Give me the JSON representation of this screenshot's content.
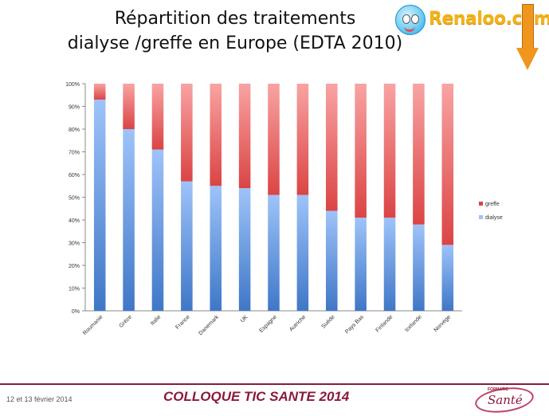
{
  "slide": {
    "title_line1": "Répartition  des traitements",
    "title_line2": "dialyse /greffe en Europe (EDTA 2010)"
  },
  "logo": {
    "text": "Renaloo.com"
  },
  "footer": {
    "date": "12 et 13 février 2014",
    "event": "COLLOQUE TIC SANTE 2014",
    "logo_small": "FORMATIC",
    "logo_main": "Santé"
  },
  "colors": {
    "dialyse_top": "#9ec3f9",
    "dialyse_bottom": "#3f77c7",
    "greffe_top": "#f9a3a3",
    "greffe_bottom": "#db4444",
    "footer_accent": "#8a1a3a",
    "arrow": "#f0961e"
  },
  "chart_data": {
    "type": "bar",
    "stacked": true,
    "percent": true,
    "categories": [
      "Roumanie",
      "Grèce",
      "Italie",
      "France",
      "Danemark",
      "UK",
      "Espagne",
      "Autriche",
      "Suède",
      "Pays Bas",
      "Finlande",
      "Icelande",
      "Norvège"
    ],
    "series": [
      {
        "name": "dialyse",
        "values": [
          93,
          80,
          71,
          57,
          55,
          54,
          51,
          51,
          44,
          41,
          41,
          38,
          29
        ]
      },
      {
        "name": "greffe",
        "values": [
          7,
          20,
          29,
          43,
          45,
          46,
          49,
          49,
          56,
          59,
          59,
          62,
          71
        ]
      }
    ],
    "ylim": [
      0,
      100
    ],
    "yticks": [
      "0%",
      "10%",
      "20%",
      "30%",
      "40%",
      "50%",
      "60%",
      "70%",
      "80%",
      "90%",
      "100%"
    ],
    "legend": [
      "greffe",
      "dialyse"
    ],
    "legend_position": "right",
    "grid": false
  }
}
